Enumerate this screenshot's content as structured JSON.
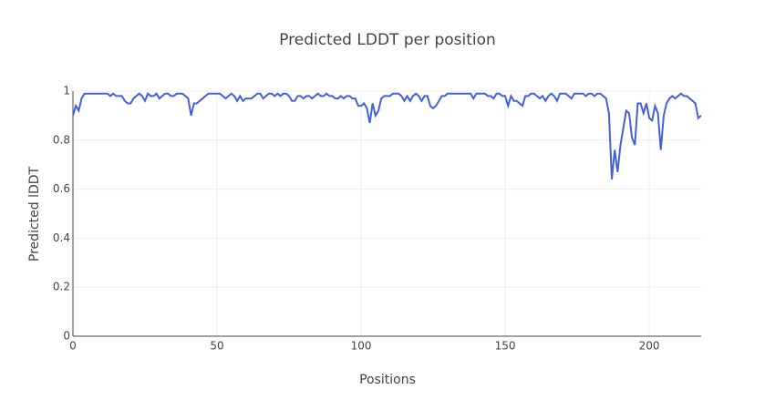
{
  "chart_data": {
    "type": "line",
    "title": "Predicted LDDT per position",
    "x_label": "Positions",
    "y_label": "Predicted lDDT",
    "x": [
      0,
      1,
      2,
      3,
      4,
      5,
      6,
      7,
      8,
      9,
      10,
      11,
      12,
      13,
      14,
      15,
      16,
      17,
      18,
      19,
      20,
      21,
      22,
      23,
      24,
      25,
      26,
      27,
      28,
      29,
      30,
      31,
      32,
      33,
      34,
      35,
      36,
      37,
      38,
      39,
      40,
      41,
      42,
      43,
      44,
      45,
      46,
      47,
      48,
      49,
      50,
      51,
      52,
      53,
      54,
      55,
      56,
      57,
      58,
      59,
      60,
      61,
      62,
      63,
      64,
      65,
      66,
      67,
      68,
      69,
      70,
      71,
      72,
      73,
      74,
      75,
      76,
      77,
      78,
      79,
      80,
      81,
      82,
      83,
      84,
      85,
      86,
      87,
      88,
      89,
      90,
      91,
      92,
      93,
      94,
      95,
      96,
      97,
      98,
      99,
      100,
      101,
      102,
      103,
      104,
      105,
      106,
      107,
      108,
      109,
      110,
      111,
      112,
      113,
      114,
      115,
      116,
      117,
      118,
      119,
      120,
      121,
      122,
      123,
      124,
      125,
      126,
      127,
      128,
      129,
      130,
      131,
      132,
      133,
      134,
      135,
      136,
      137,
      138,
      139,
      140,
      141,
      142,
      143,
      144,
      145,
      146,
      147,
      148,
      149,
      150,
      151,
      152,
      153,
      154,
      155,
      156,
      157,
      158,
      159,
      160,
      161,
      162,
      163,
      164,
      165,
      166,
      167,
      168,
      169,
      170,
      171,
      172,
      173,
      174,
      175,
      176,
      177,
      178,
      179,
      180,
      181,
      182,
      183,
      184,
      185,
      186,
      187,
      188,
      189,
      190,
      191,
      192,
      193,
      194,
      195,
      196,
      197,
      198,
      199,
      200,
      201,
      202,
      203,
      204,
      205,
      206,
      207,
      208,
      209,
      210,
      211,
      212,
      213,
      214,
      215,
      216,
      217,
      218
    ],
    "series": [
      {
        "name": "Predicted lDDT",
        "color": "#4361d8",
        "values": [
          0.9,
          0.94,
          0.92,
          0.97,
          0.99,
          0.99,
          0.99,
          0.99,
          0.99,
          0.99,
          0.99,
          0.99,
          0.99,
          0.98,
          0.99,
          0.98,
          0.98,
          0.98,
          0.96,
          0.95,
          0.95,
          0.97,
          0.98,
          0.99,
          0.98,
          0.96,
          0.99,
          0.98,
          0.98,
          0.99,
          0.97,
          0.98,
          0.99,
          0.99,
          0.98,
          0.98,
          0.99,
          0.99,
          0.99,
          0.98,
          0.97,
          0.9,
          0.95,
          0.95,
          0.96,
          0.97,
          0.98,
          0.99,
          0.99,
          0.99,
          0.99,
          0.99,
          0.98,
          0.97,
          0.98,
          0.99,
          0.98,
          0.96,
          0.98,
          0.96,
          0.97,
          0.97,
          0.97,
          0.98,
          0.99,
          0.99,
          0.97,
          0.98,
          0.99,
          0.99,
          0.98,
          0.99,
          0.98,
          0.99,
          0.99,
          0.98,
          0.96,
          0.96,
          0.98,
          0.98,
          0.97,
          0.98,
          0.98,
          0.97,
          0.98,
          0.99,
          0.98,
          0.98,
          0.99,
          0.98,
          0.98,
          0.97,
          0.97,
          0.98,
          0.97,
          0.98,
          0.98,
          0.97,
          0.97,
          0.94,
          0.94,
          0.95,
          0.93,
          0.87,
          0.95,
          0.9,
          0.92,
          0.97,
          0.98,
          0.98,
          0.98,
          0.99,
          0.99,
          0.99,
          0.98,
          0.96,
          0.98,
          0.96,
          0.98,
          0.99,
          0.98,
          0.96,
          0.98,
          0.98,
          0.94,
          0.93,
          0.94,
          0.96,
          0.98,
          0.98,
          0.99,
          0.99,
          0.99,
          0.99,
          0.99,
          0.99,
          0.99,
          0.99,
          0.99,
          0.97,
          0.99,
          0.99,
          0.99,
          0.99,
          0.98,
          0.98,
          0.97,
          0.99,
          0.99,
          0.98,
          0.98,
          0.94,
          0.98,
          0.96,
          0.96,
          0.95,
          0.94,
          0.98,
          0.98,
          0.99,
          0.99,
          0.98,
          0.97,
          0.98,
          0.96,
          0.98,
          0.99,
          0.98,
          0.96,
          0.99,
          0.99,
          0.99,
          0.98,
          0.97,
          0.99,
          0.99,
          0.99,
          0.99,
          0.98,
          0.99,
          0.99,
          0.98,
          0.99,
          0.99,
          0.98,
          0.97,
          0.91,
          0.64,
          0.76,
          0.67,
          0.78,
          0.85,
          0.92,
          0.91,
          0.81,
          0.78,
          0.95,
          0.95,
          0.91,
          0.95,
          0.89,
          0.88,
          0.94,
          0.91,
          0.76,
          0.9,
          0.95,
          0.97,
          0.98,
          0.97,
          0.98,
          0.99,
          0.98,
          0.98,
          0.97,
          0.96,
          0.95,
          0.89,
          0.9
        ]
      }
    ],
    "xlim": [
      0,
      218
    ],
    "xticks": [
      0,
      50,
      100,
      150,
      200
    ],
    "ylim": [
      0,
      1
    ],
    "yticks": [
      0,
      0.2,
      0.4,
      0.6,
      0.8,
      1
    ],
    "grid": true
  }
}
